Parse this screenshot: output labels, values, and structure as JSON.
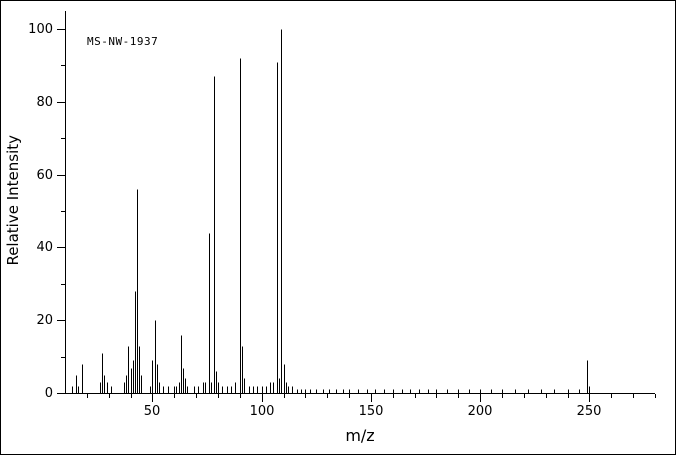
{
  "chart_data": {
    "type": "bar",
    "subtype": "mass-spectrum-stick-plot",
    "annotation": "MS-NW-1937",
    "xlabel": "m/z",
    "ylabel": "Relative Intensity",
    "xlim": [
      10,
      280
    ],
    "ylim": [
      0,
      100
    ],
    "x_major_ticks": [
      50,
      100,
      150,
      200,
      250
    ],
    "x_minor_tick_step": 10,
    "y_major_ticks": [
      0,
      20,
      40,
      60,
      80,
      100
    ],
    "y_minor_tick_step": 10,
    "grid": false,
    "legend": false,
    "colors": {
      "foreground": "#000000",
      "background": "#ffffff"
    },
    "peaks": [
      [
        13,
        2
      ],
      [
        15,
        5
      ],
      [
        16,
        2
      ],
      [
        18,
        8
      ],
      [
        26,
        3
      ],
      [
        27,
        11
      ],
      [
        28,
        5
      ],
      [
        29,
        3
      ],
      [
        31,
        2
      ],
      [
        37,
        3
      ],
      [
        38,
        5
      ],
      [
        39,
        13
      ],
      [
        40,
        7
      ],
      [
        41,
        9
      ],
      [
        42,
        28
      ],
      [
        43,
        56
      ],
      [
        44,
        13
      ],
      [
        45,
        5
      ],
      [
        49,
        2
      ],
      [
        50,
        9
      ],
      [
        51,
        20
      ],
      [
        52,
        8
      ],
      [
        53,
        3
      ],
      [
        55,
        2
      ],
      [
        57,
        2
      ],
      [
        60,
        2
      ],
      [
        61,
        2
      ],
      [
        62,
        3
      ],
      [
        63,
        16
      ],
      [
        64,
        7
      ],
      [
        65,
        4
      ],
      [
        66,
        2
      ],
      [
        69,
        2
      ],
      [
        71,
        2
      ],
      [
        73,
        3
      ],
      [
        74,
        3
      ],
      [
        76,
        44
      ],
      [
        77,
        3
      ],
      [
        78,
        87
      ],
      [
        79,
        6
      ],
      [
        80,
        3
      ],
      [
        82,
        2
      ],
      [
        84,
        2
      ],
      [
        86,
        2
      ],
      [
        88,
        3
      ],
      [
        90,
        92
      ],
      [
        91,
        13
      ],
      [
        92,
        4
      ],
      [
        94,
        2
      ],
      [
        96,
        2
      ],
      [
        98,
        2
      ],
      [
        100,
        2
      ],
      [
        102,
        2
      ],
      [
        104,
        3
      ],
      [
        105,
        3
      ],
      [
        107,
        91
      ],
      [
        108,
        4
      ],
      [
        109,
        100
      ],
      [
        110,
        8
      ],
      [
        111,
        3
      ],
      [
        112,
        2
      ],
      [
        114,
        2
      ],
      [
        116,
        1
      ],
      [
        118,
        1
      ],
      [
        120,
        1
      ],
      [
        122,
        1
      ],
      [
        125,
        1
      ],
      [
        128,
        1
      ],
      [
        131,
        1
      ],
      [
        134,
        1
      ],
      [
        137,
        1
      ],
      [
        140,
        1
      ],
      [
        144,
        1
      ],
      [
        148,
        1
      ],
      [
        152,
        1
      ],
      [
        156,
        1
      ],
      [
        160,
        1
      ],
      [
        164,
        1
      ],
      [
        168,
        1
      ],
      [
        172,
        1
      ],
      [
        176,
        1
      ],
      [
        180,
        1
      ],
      [
        185,
        1
      ],
      [
        190,
        1
      ],
      [
        195,
        1
      ],
      [
        200,
        1
      ],
      [
        205,
        1
      ],
      [
        210,
        1
      ],
      [
        216,
        1
      ],
      [
        222,
        1
      ],
      [
        228,
        1
      ],
      [
        234,
        1
      ],
      [
        240,
        1
      ],
      [
        245,
        1
      ],
      [
        249,
        9
      ],
      [
        250,
        2
      ]
    ]
  }
}
